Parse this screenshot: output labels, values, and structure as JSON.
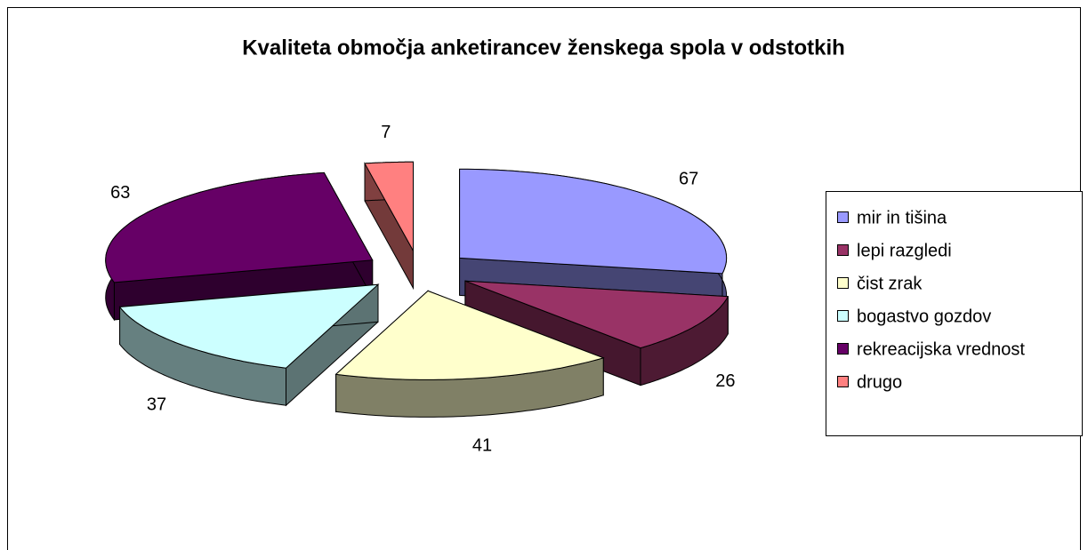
{
  "chart_data": {
    "type": "pie3d",
    "title": "Kvaliteta območja anketirancev ženskega spola v odstotkih",
    "categories": [
      "mir in tišina",
      "lepi razgledi",
      "čist zrak",
      "bogastvo gozdov",
      "rekreacijska vrednost",
      "drugo"
    ],
    "values": [
      67,
      26,
      41,
      37,
      63,
      7
    ],
    "colors": [
      "#9999ff",
      "#993366",
      "#ffffcc",
      "#ccffff",
      "#660066",
      "#ff8080"
    ],
    "legend": "right"
  }
}
